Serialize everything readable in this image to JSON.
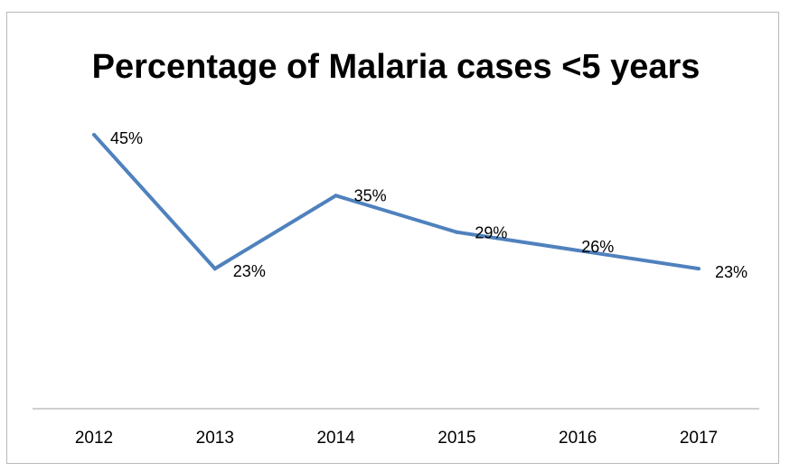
{
  "chart_data": {
    "type": "line",
    "title": "Percentage of Malaria cases <5 years",
    "xlabel": "",
    "ylabel": "",
    "categories": [
      "2012",
      "2013",
      "2014",
      "2015",
      "2016",
      "2017"
    ],
    "series": [
      {
        "values": [
          45,
          23,
          35,
          29,
          26,
          23
        ],
        "data_labels": [
          "45%",
          "23%",
          "35%",
          "29%",
          "26%",
          "23%"
        ],
        "color": "#4f81bd"
      }
    ],
    "ylim": [
      0,
      50
    ],
    "grid": false,
    "legend": "none",
    "axis_color": "#bfbfbf"
  }
}
